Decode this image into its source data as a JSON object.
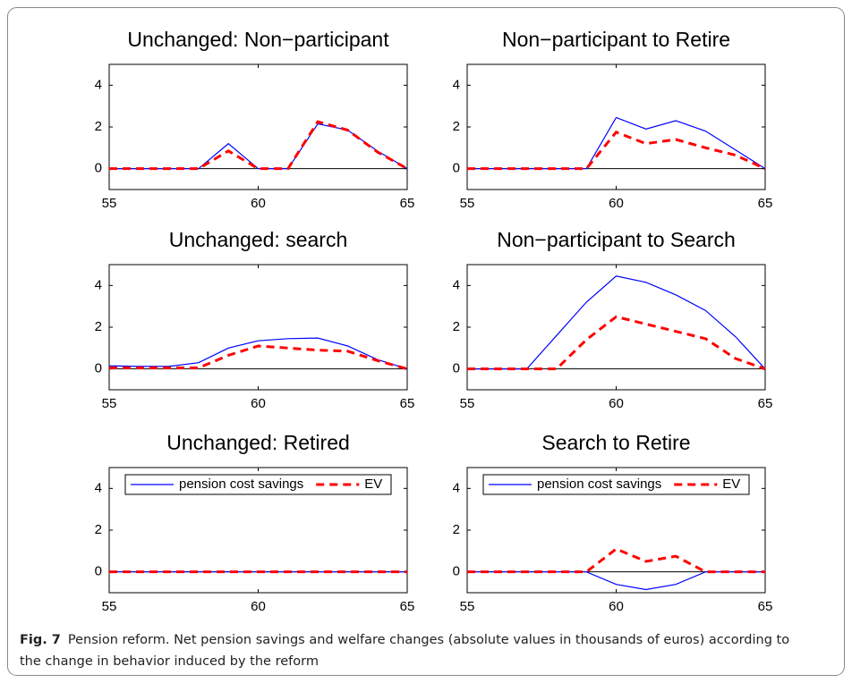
{
  "chart_data": [
    {
      "type": "line",
      "title": "Unchanged: Non−participant",
      "x": [
        55,
        56,
        57,
        58,
        59,
        60,
        61,
        62,
        63,
        64,
        65
      ],
      "xlim": [
        55,
        65
      ],
      "ylim": [
        -1,
        5
      ],
      "xticks": [
        55,
        60,
        65
      ],
      "yticks": [
        0,
        2,
        4
      ],
      "series": [
        {
          "name": "pension cost savings",
          "color": "#0000ff",
          "line_style": "solid",
          "values": [
            0,
            0,
            0,
            0,
            1.2,
            0,
            0,
            2.15,
            1.85,
            0.85,
            0
          ]
        },
        {
          "name": "EV",
          "color": "#ff0000",
          "line_style": "dashed",
          "values": [
            0,
            0,
            0,
            0,
            0.85,
            0,
            0,
            2.25,
            1.85,
            0.8,
            0
          ]
        }
      ]
    },
    {
      "type": "line",
      "title": "Non−participant to Retire",
      "x": [
        55,
        56,
        57,
        58,
        59,
        60,
        61,
        62,
        63,
        64,
        65
      ],
      "xlim": [
        55,
        65
      ],
      "ylim": [
        -1,
        5
      ],
      "xticks": [
        55,
        60,
        65
      ],
      "yticks": [
        0,
        2,
        4
      ],
      "series": [
        {
          "name": "pension cost savings",
          "color": "#0000ff",
          "line_style": "solid",
          "values": [
            0,
            0,
            0,
            0,
            0,
            2.45,
            1.9,
            2.3,
            1.8,
            0.9,
            0
          ]
        },
        {
          "name": "EV",
          "color": "#ff0000",
          "line_style": "dashed",
          "values": [
            0,
            0,
            0,
            0,
            0,
            1.75,
            1.2,
            1.4,
            1.0,
            0.65,
            0
          ]
        }
      ]
    },
    {
      "type": "line",
      "title": "Unchanged: search",
      "x": [
        55,
        56,
        57,
        58,
        59,
        60,
        61,
        62,
        63,
        64,
        65
      ],
      "xlim": [
        55,
        65
      ],
      "ylim": [
        -1,
        5
      ],
      "xticks": [
        55,
        60,
        65
      ],
      "yticks": [
        0,
        2,
        4
      ],
      "series": [
        {
          "name": "pension cost savings",
          "color": "#0000ff",
          "line_style": "solid",
          "values": [
            0.15,
            0.12,
            0.12,
            0.3,
            1.0,
            1.35,
            1.45,
            1.48,
            1.1,
            0.45,
            0
          ]
        },
        {
          "name": "EV",
          "color": "#ff0000",
          "line_style": "dashed",
          "values": [
            0.05,
            0.05,
            0.05,
            0.05,
            0.65,
            1.1,
            1.0,
            0.9,
            0.85,
            0.4,
            0
          ]
        }
      ]
    },
    {
      "type": "line",
      "title": "Non−participant to Search",
      "x": [
        55,
        56,
        57,
        58,
        59,
        60,
        61,
        62,
        63,
        64,
        65
      ],
      "xlim": [
        55,
        65
      ],
      "ylim": [
        -1,
        5
      ],
      "xticks": [
        55,
        60,
        65
      ],
      "yticks": [
        0,
        2,
        4
      ],
      "series": [
        {
          "name": "pension cost savings",
          "color": "#0000ff",
          "line_style": "solid",
          "values": [
            0,
            0,
            0,
            1.6,
            3.2,
            4.45,
            4.15,
            3.55,
            2.8,
            1.55,
            0
          ]
        },
        {
          "name": "EV",
          "color": "#ff0000",
          "line_style": "dashed",
          "values": [
            0,
            0,
            0,
            0,
            1.4,
            2.5,
            2.15,
            1.8,
            1.45,
            0.5,
            0
          ]
        }
      ]
    },
    {
      "type": "line",
      "title": "Unchanged: Retired",
      "legend": "upper center",
      "x": [
        55,
        56,
        57,
        58,
        59,
        60,
        61,
        62,
        63,
        64,
        65
      ],
      "xlim": [
        55,
        65
      ],
      "ylim": [
        -1,
        5
      ],
      "xticks": [
        55,
        60,
        65
      ],
      "yticks": [
        0,
        2,
        4
      ],
      "series": [
        {
          "name": "pension cost savings",
          "color": "#0000ff",
          "line_style": "solid",
          "values": [
            0,
            0,
            0,
            0,
            0,
            0,
            0,
            0,
            0,
            0,
            0
          ]
        },
        {
          "name": "EV",
          "color": "#ff0000",
          "line_style": "dashed",
          "values": [
            0,
            0,
            0,
            0,
            0,
            0,
            0,
            0,
            0,
            0,
            0
          ]
        }
      ]
    },
    {
      "type": "line",
      "title": "Search to Retire",
      "legend": "upper center",
      "x": [
        55,
        56,
        57,
        58,
        59,
        60,
        61,
        62,
        63,
        64,
        65
      ],
      "xlim": [
        55,
        65
      ],
      "ylim": [
        -1,
        5
      ],
      "xticks": [
        55,
        60,
        65
      ],
      "yticks": [
        0,
        2,
        4
      ],
      "series": [
        {
          "name": "pension cost savings",
          "color": "#0000ff",
          "line_style": "solid",
          "values": [
            0,
            0,
            0,
            0,
            0,
            -0.6,
            -0.85,
            -0.6,
            0,
            0,
            0
          ]
        },
        {
          "name": "EV",
          "color": "#ff0000",
          "line_style": "dashed",
          "values": [
            0,
            0,
            0,
            0,
            0,
            1.1,
            0.5,
            0.75,
            0,
            0,
            0
          ]
        }
      ]
    }
  ],
  "caption": {
    "label": "Fig. 7",
    "text": "Pension reform. Net pension savings and welfare changes (absolute values in thousands of euros) according to the change in behavior induced by the reform"
  }
}
